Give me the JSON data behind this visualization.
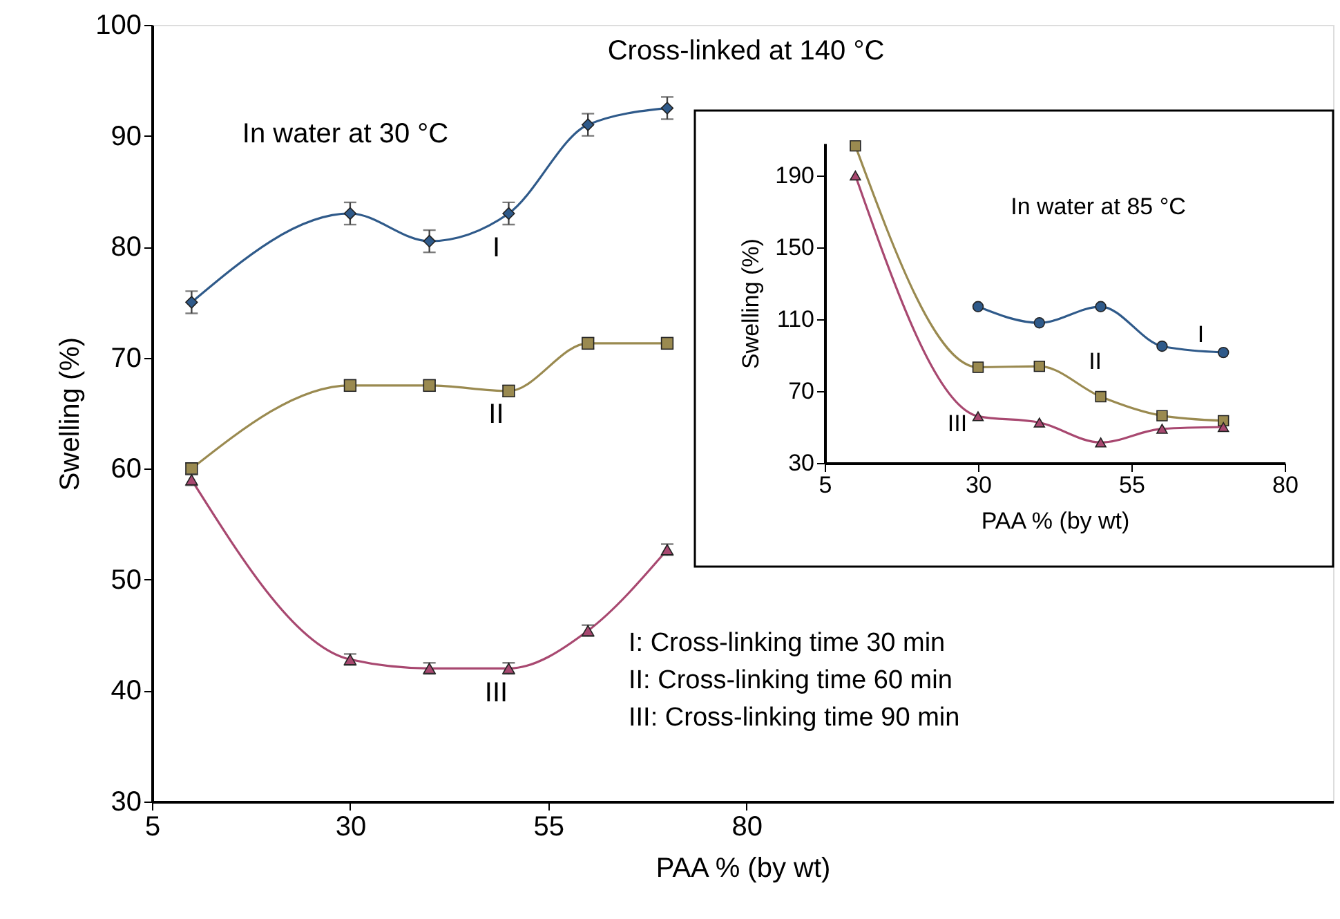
{
  "chart_data": [
    {
      "type": "line",
      "title": "Cross-linked at 140 °C",
      "xlabel": "PAA % (by wt)",
      "ylabel": "Swelling (%)",
      "x": [
        10,
        30,
        40,
        50,
        60,
        70
      ],
      "xlim": [
        5,
        154
      ],
      "xticks": [
        5,
        30,
        55,
        80
      ],
      "ylim": [
        30,
        100
      ],
      "yticks": [
        30,
        40,
        50,
        60,
        70,
        80,
        90,
        100
      ],
      "annotations": [
        "In water at 30 °C",
        "I: Cross-linking time 30 min",
        "II: Cross-linking time 60 min",
        "III: Cross-linking time 90 min"
      ],
      "series": [
        {
          "name": "I",
          "color": "#2f5a8a",
          "marker": "diamond",
          "values": [
            75,
            83,
            80.5,
            83,
            91,
            92.5
          ],
          "errors": [
            1,
            1,
            1,
            1,
            1,
            1
          ]
        },
        {
          "name": "II",
          "color": "#9a8a50",
          "marker": "square",
          "values": [
            60,
            67.5,
            67.5,
            67,
            71.3,
            71.3
          ],
          "errors": [
            0.5,
            0.5,
            0.5,
            0.5,
            0.5,
            0.5
          ]
        },
        {
          "name": "III",
          "color": "#a84870",
          "marker": "triangle",
          "values": [
            59,
            42.8,
            42,
            42,
            45.4,
            52.7
          ],
          "errors": [
            0.5,
            0.5,
            0.5,
            0.5,
            0.5,
            0.5
          ]
        }
      ]
    },
    {
      "type": "line",
      "xlabel": "PAA % (by wt)",
      "ylabel": "Swelling (%)",
      "xlim": [
        5,
        80
      ],
      "xticks": [
        5,
        30,
        55,
        80
      ],
      "ylim": [
        30,
        208
      ],
      "yticks": [
        30,
        70,
        110,
        150,
        190
      ],
      "annotations": [
        "In water at 85 °C"
      ],
      "series": [
        {
          "name": "I",
          "color": "#2f5a8a",
          "marker": "circle",
          "x": [
            30,
            40,
            50,
            60,
            70
          ],
          "values": [
            117,
            108,
            117,
            95,
            91.5
          ]
        },
        {
          "name": "II",
          "color": "#9a8a50",
          "marker": "square",
          "x": [
            10,
            30,
            40,
            50,
            60,
            70
          ],
          "values": [
            206.5,
            83.3,
            83.8,
            66.9,
            56.3,
            53.5
          ]
        },
        {
          "name": "III",
          "color": "#a84870",
          "marker": "triangle",
          "x": [
            10,
            30,
            40,
            50,
            60,
            70
          ],
          "values": [
            190,
            56,
            52.5,
            41.4,
            49,
            50
          ]
        }
      ]
    }
  ]
}
